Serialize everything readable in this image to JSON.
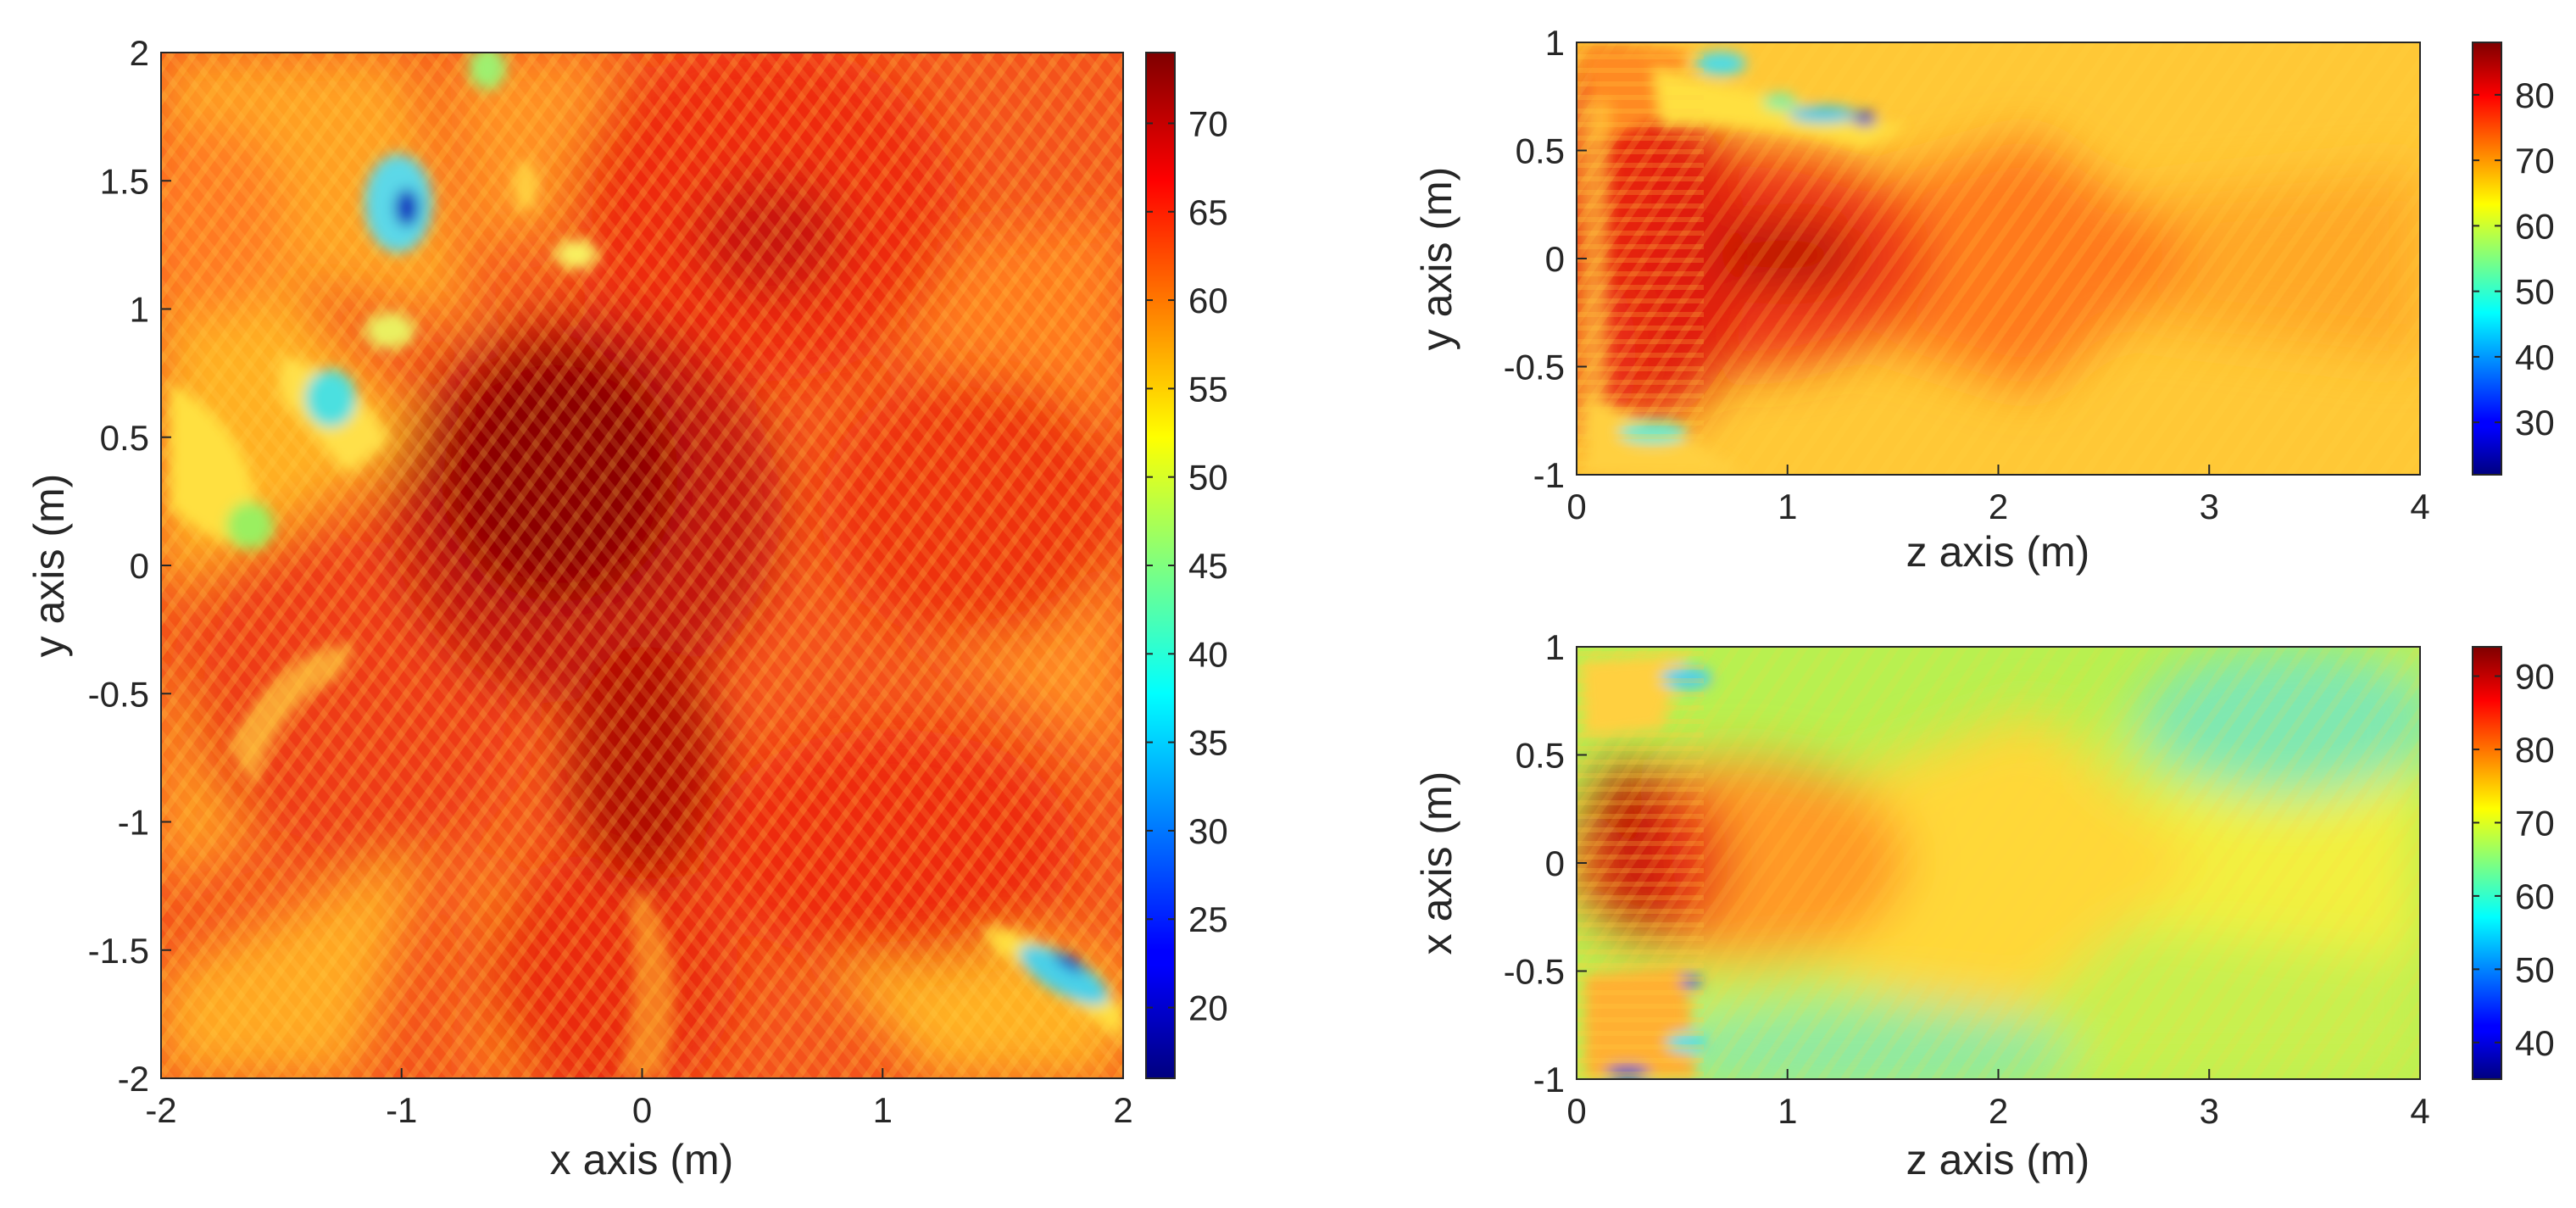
{
  "chart_data": [
    {
      "type": "heatmap",
      "xlabel": "x axis (m)",
      "ylabel": "y axis (m)",
      "xlim": [
        -2,
        2
      ],
      "ylim": [
        -2,
        2
      ],
      "xticks": [
        "-2",
        "-1",
        "0",
        "1",
        "2"
      ],
      "yticks": [
        "2",
        "1.5",
        "1",
        "0.5",
        "0",
        "-0.5",
        "-1",
        "-1.5",
        "-2"
      ],
      "colorbar": {
        "colormap": "jet",
        "clim": [
          16,
          74
        ],
        "ticks": [
          "70",
          "65",
          "60",
          "55",
          "50",
          "45",
          "40",
          "35",
          "30",
          "25",
          "20"
        ]
      },
      "grid": false
    },
    {
      "type": "heatmap",
      "xlabel": "z axis (m)",
      "ylabel": "y axis (m)",
      "xlim": [
        0,
        4
      ],
      "ylim": [
        -1,
        1
      ],
      "xticks": [
        "0",
        "1",
        "2",
        "3",
        "4"
      ],
      "yticks": [
        "1",
        "0.5",
        "0",
        "-0.5",
        "-1"
      ],
      "colorbar": {
        "colormap": "jet",
        "clim": [
          22,
          88
        ],
        "ticks": [
          "80",
          "70",
          "60",
          "50",
          "40",
          "30"
        ]
      },
      "grid": false
    },
    {
      "type": "heatmap",
      "xlabel": "z axis (m)",
      "ylabel": "x axis (m)",
      "xlim": [
        0,
        4
      ],
      "ylim": [
        -1,
        1
      ],
      "xticks": [
        "0",
        "1",
        "2",
        "3",
        "4"
      ],
      "yticks": [
        "1",
        "0.5",
        "0",
        "-0.5",
        "-1"
      ],
      "colorbar": {
        "colormap": "jet",
        "clim": [
          35,
          94
        ],
        "ticks": [
          "90",
          "80",
          "70",
          "60",
          "50",
          "40"
        ]
      },
      "grid": false
    }
  ]
}
